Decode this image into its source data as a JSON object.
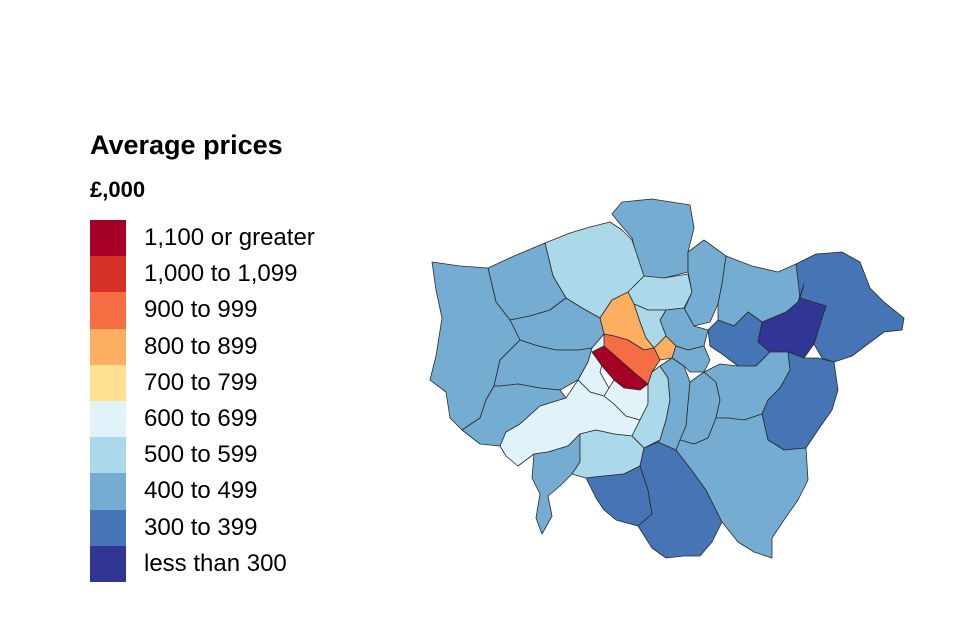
{
  "legend": {
    "title": "Average prices",
    "unit": "£,000",
    "items": [
      {
        "label": "1,100 or greater",
        "color": "#a50026"
      },
      {
        "label": "1,000 to 1,099",
        "color": "#d73027"
      },
      {
        "label": "900 to 999",
        "color": "#f46d43"
      },
      {
        "label": "800 to 899",
        "color": "#fdae61"
      },
      {
        "label": "700 to 799",
        "color": "#fee090"
      },
      {
        "label": "600 to 699",
        "color": "#e0f3f8"
      },
      {
        "label": "500 to 599",
        "color": "#abd9e9"
      },
      {
        "label": "400 to 499",
        "color": "#74add1"
      },
      {
        "label": "300 to 399",
        "color": "#4575b4"
      },
      {
        "label": "less than 300",
        "color": "#313695"
      }
    ]
  },
  "map": {
    "regions": [
      {
        "name": "enfield-region",
        "band": 7
      },
      {
        "name": "barnet-region",
        "band": 6
      },
      {
        "name": "haringey-region",
        "band": 6
      },
      {
        "name": "waltham-forest-region",
        "band": 7
      },
      {
        "name": "redbridge-region",
        "band": 7
      },
      {
        "name": "havering-region",
        "band": 8
      },
      {
        "name": "barking-dagenham-region",
        "band": 9
      },
      {
        "name": "newham-region",
        "band": 8
      },
      {
        "name": "hackney-region",
        "band": 7
      },
      {
        "name": "islington-region",
        "band": 6
      },
      {
        "name": "camden-region",
        "band": 3
      },
      {
        "name": "city-region",
        "band": 3
      },
      {
        "name": "harrow-region",
        "band": 7
      },
      {
        "name": "brent-region",
        "band": 7
      },
      {
        "name": "hillingdon-region",
        "band": 7
      },
      {
        "name": "ealing-region",
        "band": 7
      },
      {
        "name": "hounslow-region",
        "band": 7
      },
      {
        "name": "hammersmith-region",
        "band": 5
      },
      {
        "name": "kensington-chelsea-region",
        "band": 0
      },
      {
        "name": "westminster-region",
        "band": 2
      },
      {
        "name": "richmond-region",
        "band": 5
      },
      {
        "name": "wandsworth-region",
        "band": 5
      },
      {
        "name": "kingston-region",
        "band": 7
      },
      {
        "name": "merton-region",
        "band": 6
      },
      {
        "name": "sutton-region",
        "band": 8
      },
      {
        "name": "croydon-region",
        "band": 8
      },
      {
        "name": "lambeth-region",
        "band": 6
      },
      {
        "name": "southwark-region",
        "band": 7
      },
      {
        "name": "tower-hamlets-region",
        "band": 7
      },
      {
        "name": "lewisham-region",
        "band": 7
      },
      {
        "name": "greenwich-region",
        "band": 7
      },
      {
        "name": "bexley-region",
        "band": 8
      },
      {
        "name": "bromley-region",
        "band": 7
      }
    ]
  }
}
